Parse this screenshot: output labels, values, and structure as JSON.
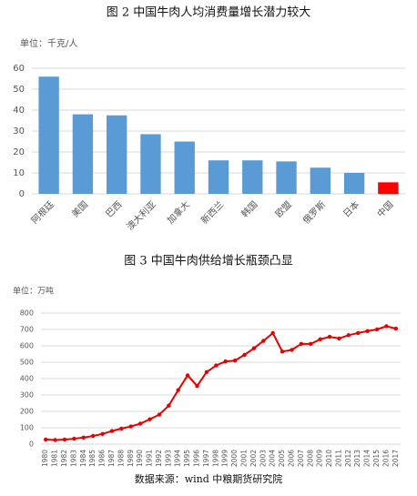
{
  "chart_data": [
    {
      "type": "bar",
      "title": "图 2  中国牛肉人均消费量增长潜力较大",
      "y_label": "单位：千克/人",
      "categories": [
        "阿根廷",
        "美国",
        "巴西",
        "澳大利亚",
        "加拿大",
        "新西兰",
        "韩国",
        "欧盟",
        "俄罗斯",
        "日本",
        "中国"
      ],
      "values": [
        56,
        38,
        37.5,
        28.5,
        25,
        16,
        16,
        15.5,
        12.5,
        10,
        5.5
      ],
      "colors": [
        "#5b9bd5",
        "#5b9bd5",
        "#5b9bd5",
        "#5b9bd5",
        "#5b9bd5",
        "#5b9bd5",
        "#5b9bd5",
        "#5b9bd5",
        "#5b9bd5",
        "#5b9bd5",
        "#ff0000"
      ],
      "ylim": [
        0,
        60
      ],
      "yticks": [
        0,
        10,
        20,
        30,
        40,
        50,
        60
      ],
      "grid": true
    },
    {
      "type": "line",
      "title": "图 3  中国牛肉供给增长瓶颈凸显",
      "y_label": "单位：万吨",
      "categories": [
        "1980",
        "1981",
        "1982",
        "1983",
        "1984",
        "1985",
        "1986",
        "1987",
        "1988",
        "1989",
        "1990",
        "1991",
        "1992",
        "1993",
        "1994",
        "1995",
        "1996",
        "1997",
        "1998",
        "1999",
        "2000",
        "2001",
        "2002",
        "2003",
        "2004",
        "2005",
        "2006",
        "2007",
        "2008",
        "2009",
        "2010",
        "2011",
        "2012",
        "2013",
        "2014",
        "2015",
        "2016",
        "2017"
      ],
      "values": [
        28,
        25,
        28,
        33,
        40,
        50,
        62,
        80,
        95,
        108,
        125,
        152,
        180,
        235,
        330,
        420,
        355,
        440,
        480,
        505,
        510,
        545,
        585,
        630,
        678,
        565,
        575,
        612,
        612,
        640,
        655,
        645,
        665,
        678,
        690,
        700,
        720,
        705
      ],
      "color": "#e60000",
      "ylim": [
        0,
        800
      ],
      "yticks": [
        0,
        100,
        200,
        300,
        400,
        500,
        600,
        700,
        800
      ],
      "grid": true
    }
  ],
  "source": "数据来源：wind  中粮期货研究院"
}
